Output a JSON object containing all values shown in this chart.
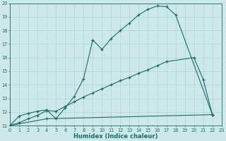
{
  "xlabel": "Humidex (Indice chaleur)",
  "xlim": [
    0,
    23
  ],
  "ylim": [
    11,
    20
  ],
  "xticks": [
    0,
    1,
    2,
    3,
    4,
    5,
    6,
    7,
    8,
    9,
    10,
    11,
    12,
    13,
    14,
    15,
    16,
    17,
    18,
    19,
    20,
    21,
    22,
    23
  ],
  "yticks": [
    11,
    12,
    13,
    14,
    15,
    16,
    17,
    18,
    19,
    20
  ],
  "bg_color": "#cce8e8",
  "line_color": "#1a6b6b",
  "grid_color": "#aad4d4",
  "curve1_x": [
    0,
    1,
    2,
    3,
    4,
    5,
    6,
    7,
    8,
    9,
    10,
    11,
    12,
    13,
    14,
    15,
    16,
    17,
    18,
    22
  ],
  "curve1_y": [
    11.0,
    11.7,
    11.9,
    12.05,
    12.15,
    11.5,
    12.3,
    13.15,
    14.45,
    17.3,
    16.6,
    17.4,
    18.0,
    18.55,
    19.15,
    19.55,
    19.8,
    19.75,
    19.15,
    11.8
  ],
  "curve2_x": [
    0,
    1,
    2,
    3,
    4,
    5,
    6,
    7,
    8,
    9,
    10,
    11,
    12,
    13,
    14,
    15,
    16,
    17,
    20,
    21,
    22
  ],
  "curve2_y": [
    11.0,
    11.2,
    11.5,
    11.75,
    12.1,
    12.05,
    12.4,
    12.75,
    13.1,
    13.4,
    13.7,
    14.0,
    14.3,
    14.55,
    14.85,
    15.1,
    15.4,
    15.7,
    16.0,
    14.4,
    11.8
  ],
  "curve3_x": [
    0,
    4,
    22
  ],
  "curve3_y": [
    11.0,
    11.5,
    11.8
  ]
}
